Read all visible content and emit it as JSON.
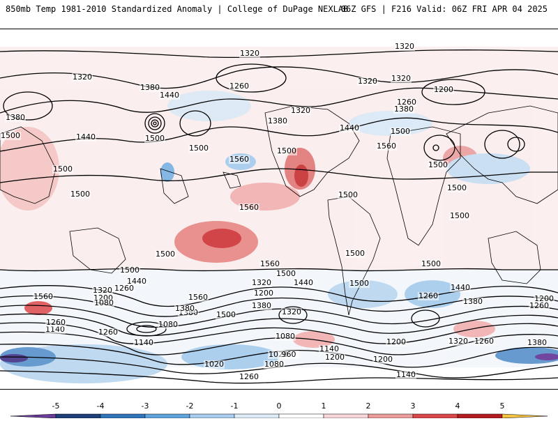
{
  "header": {
    "title_left": "850mb Temp 1981-2010 Standardized Anomaly | College of DuPage NEXLAB",
    "title_right": "06Z GFS | F216 Valid: 06Z FRI APR 04 2025"
  },
  "legend": {
    "ticks": [
      "-5",
      "-4",
      "-3",
      "-2",
      "-1",
      "0",
      "1",
      "2",
      "3",
      "4",
      "5"
    ],
    "colors": [
      "#6a3d9a",
      "#1f3f7a",
      "#2f73b9",
      "#5fa3dc",
      "#a9cdee",
      "#dcebf8",
      "#ffffff",
      "#f6d6d8",
      "#ec9c9a",
      "#d9474a",
      "#b31d22",
      "#7a0f14",
      "#f5c342"
    ]
  },
  "contour_labels": [
    "1320",
    "1320",
    "1320",
    "1380",
    "1260",
    "1320",
    "1320",
    "1200",
    "1440",
    "1320",
    "1260",
    "1380",
    "1440",
    "1380",
    "1500",
    "1380",
    "1500",
    "1440",
    "1500",
    "1560",
    "1500",
    "1560",
    "1500",
    "1500",
    "1500",
    "1500",
    "1560",
    "1500",
    "1500",
    "1500",
    "1500",
    "1500",
    "1500",
    "1500",
    "1560",
    "1500",
    "1500",
    "1440",
    "1380",
    "1560",
    "1320",
    "1200",
    "1080",
    "1380",
    "1560",
    "1260",
    "1500",
    "1440",
    "1320",
    "1200",
    "1440",
    "1260",
    "1380",
    "1320",
    "1200",
    "1260",
    "1380",
    "1080",
    "1140",
    "1260",
    "1260",
    "1140",
    "1080",
    "1020",
    "1020",
    "960",
    "1140",
    "1080",
    "1200",
    "1320",
    "1260",
    "1140",
    "1200",
    "1200",
    "1260",
    "1380"
  ],
  "colors": {
    "background": "#ffffff",
    "ocean_base": "#f7f2f2",
    "warm": "#ec9c9a",
    "strong_warm": "#d9474a",
    "cool": "#a9cdee",
    "strong_cool": "#5fa3dc"
  }
}
